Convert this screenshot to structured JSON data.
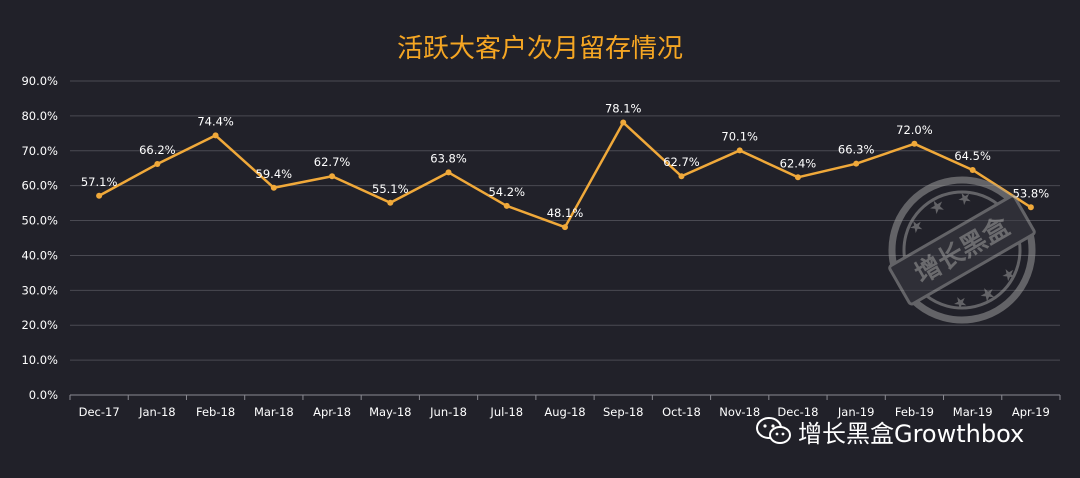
{
  "chart_data": {
    "type": "line",
    "title": "活跃大客户次月留存情况",
    "categories": [
      "Dec-17",
      "Jan-18",
      "Feb-18",
      "Mar-18",
      "Apr-18",
      "May-18",
      "Jun-18",
      "Jul-18",
      "Aug-18",
      "Sep-18",
      "Oct-18",
      "Nov-18",
      "Dec-18",
      "Jan-19",
      "Feb-19",
      "Mar-19",
      "Apr-19"
    ],
    "values": [
      57.1,
      66.2,
      74.4,
      59.4,
      62.7,
      55.1,
      63.8,
      54.2,
      48.1,
      78.1,
      62.7,
      70.1,
      62.4,
      66.3,
      72.0,
      64.5,
      53.8
    ],
    "data_labels": [
      "57.1%",
      "66.2%",
      "74.4%",
      "59.4%",
      "62.7%",
      "55.1%",
      "63.8%",
      "54.2%",
      "48.1%",
      "78.1%",
      "62.7%",
      "70.1%",
      "62.4%",
      "66.3%",
      "72.0%",
      "64.5%",
      "53.8%"
    ],
    "yticks": [
      "0.0%",
      "10.0%",
      "20.0%",
      "30.0%",
      "40.0%",
      "50.0%",
      "60.0%",
      "70.0%",
      "80.0%",
      "90.0%"
    ],
    "ylim": [
      0,
      90
    ],
    "xlabel": "",
    "ylabel": "",
    "grid": true,
    "legend": "none",
    "colors": {
      "line": "#f0a93a",
      "title": "#f5a623",
      "grid": "#4a4a52",
      "axis_text": "#ffffff",
      "background": "#212129"
    }
  },
  "watermark": {
    "seal_text": "增长黑盒",
    "credit_text": "增长黑盒Growthbox",
    "icon": "wechat-icon"
  }
}
